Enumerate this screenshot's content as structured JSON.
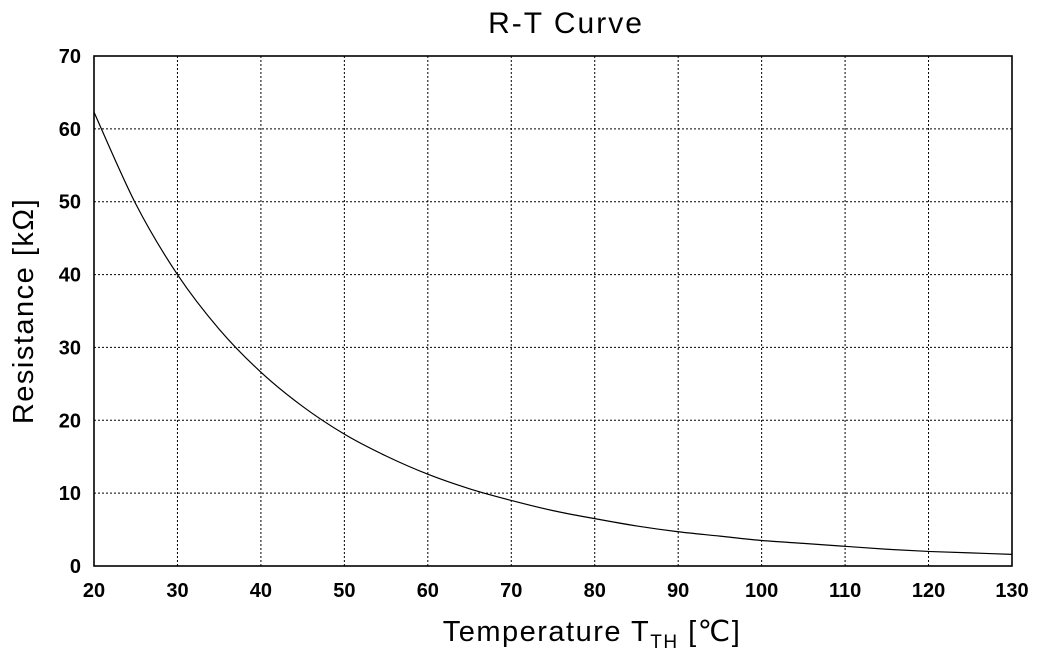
{
  "chart_data": {
    "type": "line",
    "title": "R-T Curve",
    "xlabel_main": "Temperature T",
    "xlabel_sub": "TH",
    "xlabel_unit": " [℃]",
    "ylabel": "Resistance [kΩ]",
    "xlim": [
      20,
      130
    ],
    "ylim": [
      0,
      70
    ],
    "grid": true,
    "xticks": [
      20,
      30,
      40,
      50,
      60,
      70,
      80,
      90,
      100,
      110,
      120,
      130
    ],
    "yticks": [
      0,
      10,
      20,
      30,
      40,
      50,
      60,
      70
    ],
    "series": [
      {
        "x": [
          20,
          25,
          30,
          35,
          40,
          45,
          50,
          55,
          60,
          65,
          70,
          75,
          80,
          85,
          90,
          95,
          100,
          105,
          110,
          115,
          120,
          125,
          130
        ],
        "y": [
          62.3,
          49.7,
          40.0,
          32.5,
          26.6,
          21.9,
          18.1,
          15.1,
          12.6,
          10.6,
          9.0,
          7.6,
          6.5,
          5.5,
          4.7,
          4.1,
          3.5,
          3.1,
          2.7,
          2.3,
          2.0,
          1.8,
          1.6
        ]
      }
    ]
  }
}
